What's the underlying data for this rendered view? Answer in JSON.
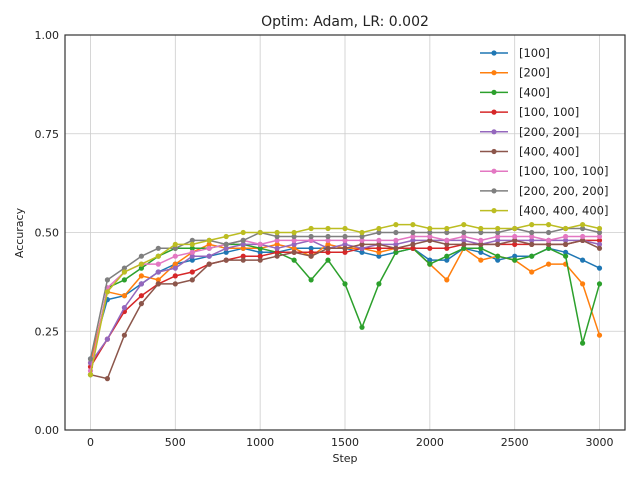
{
  "chart_data": {
    "type": "line",
    "title": "Optim: Adam, LR: 0.002",
    "xlabel": "Step",
    "ylabel": "Accuracy",
    "xlim": [
      -150,
      3150
    ],
    "ylim": [
      0.0,
      1.0
    ],
    "xticks": [
      0,
      500,
      1000,
      1500,
      2000,
      2500,
      3000
    ],
    "xtick_labels": [
      "0",
      "500",
      "1000",
      "1500",
      "2000",
      "2500",
      "3000"
    ],
    "yticks": [
      0.0,
      0.25,
      0.5,
      0.75,
      1.0
    ],
    "ytick_labels": [
      "0.00",
      "0.25",
      "0.50",
      "0.75",
      "1.00"
    ],
    "grid": true,
    "legend_position": "top-right",
    "x": [
      0,
      100,
      200,
      300,
      400,
      500,
      600,
      700,
      800,
      900,
      1000,
      1100,
      1200,
      1300,
      1400,
      1500,
      1600,
      1700,
      1800,
      1900,
      2000,
      2100,
      2200,
      2300,
      2400,
      2500,
      2600,
      2700,
      2800,
      2900,
      3000
    ],
    "series": [
      {
        "name": "[100]",
        "color": "#1f77b4",
        "values": [
          0.18,
          0.33,
          0.34,
          0.37,
          0.4,
          0.42,
          0.43,
          0.44,
          0.45,
          0.46,
          0.45,
          0.45,
          0.46,
          0.46,
          0.46,
          0.46,
          0.45,
          0.44,
          0.45,
          0.46,
          0.43,
          0.43,
          0.46,
          0.45,
          0.43,
          0.44,
          0.44,
          0.46,
          0.45,
          0.43,
          0.41
        ]
      },
      {
        "name": "[200]",
        "color": "#ff7f0e",
        "values": [
          0.17,
          0.35,
          0.34,
          0.39,
          0.38,
          0.42,
          0.45,
          0.47,
          0.46,
          0.46,
          0.46,
          0.47,
          0.46,
          0.44,
          0.47,
          0.46,
          0.46,
          0.45,
          0.46,
          0.46,
          0.42,
          0.38,
          0.46,
          0.43,
          0.44,
          0.43,
          0.4,
          0.42,
          0.42,
          0.37,
          0.24
        ]
      },
      {
        "name": "[400]",
        "color": "#2ca02c",
        "values": [
          0.14,
          0.36,
          0.38,
          0.41,
          0.44,
          0.46,
          0.46,
          0.46,
          0.47,
          0.47,
          0.46,
          0.45,
          0.43,
          0.38,
          0.43,
          0.37,
          0.26,
          0.37,
          0.45,
          0.46,
          0.42,
          0.44,
          0.46,
          0.46,
          0.44,
          0.43,
          0.44,
          0.46,
          0.44,
          0.22,
          0.37
        ]
      },
      {
        "name": "[100, 100]",
        "color": "#d62728",
        "values": [
          0.16,
          0.23,
          0.3,
          0.34,
          0.37,
          0.39,
          0.4,
          0.42,
          0.43,
          0.44,
          0.44,
          0.45,
          0.45,
          0.45,
          0.45,
          0.45,
          0.46,
          0.46,
          0.46,
          0.46,
          0.46,
          0.46,
          0.47,
          0.47,
          0.47,
          0.47,
          0.47,
          0.47,
          0.47,
          0.48,
          0.48
        ]
      },
      {
        "name": "[200, 200]",
        "color": "#9467bd",
        "values": [
          0.17,
          0.23,
          0.31,
          0.37,
          0.4,
          0.41,
          0.44,
          0.44,
          0.46,
          0.47,
          0.47,
          0.46,
          0.47,
          0.48,
          0.46,
          0.47,
          0.46,
          0.47,
          0.47,
          0.48,
          0.48,
          0.48,
          0.48,
          0.47,
          0.48,
          0.48,
          0.48,
          0.48,
          0.48,
          0.48,
          0.47
        ]
      },
      {
        "name": "[400, 400]",
        "color": "#8c564b",
        "values": [
          0.14,
          0.13,
          0.24,
          0.32,
          0.37,
          0.37,
          0.38,
          0.42,
          0.43,
          0.43,
          0.43,
          0.44,
          0.45,
          0.44,
          0.46,
          0.46,
          0.47,
          0.47,
          0.46,
          0.47,
          0.48,
          0.47,
          0.47,
          0.47,
          0.47,
          0.48,
          0.47,
          0.47,
          0.47,
          0.48,
          0.46
        ]
      },
      {
        "name": "[100, 100, 100]",
        "color": "#e377c2",
        "values": [
          0.15,
          0.36,
          0.4,
          0.42,
          0.42,
          0.44,
          0.45,
          0.46,
          0.47,
          0.48,
          0.47,
          0.48,
          0.48,
          0.48,
          0.48,
          0.48,
          0.48,
          0.48,
          0.48,
          0.49,
          0.49,
          0.48,
          0.49,
          0.48,
          0.49,
          0.49,
          0.49,
          0.48,
          0.49,
          0.49,
          0.49
        ]
      },
      {
        "name": "[200, 200, 200]",
        "color": "#7f7f7f",
        "values": [
          0.18,
          0.38,
          0.41,
          0.44,
          0.46,
          0.46,
          0.48,
          0.48,
          0.47,
          0.48,
          0.5,
          0.49,
          0.49,
          0.49,
          0.49,
          0.49,
          0.49,
          0.5,
          0.5,
          0.5,
          0.5,
          0.5,
          0.5,
          0.5,
          0.5,
          0.51,
          0.5,
          0.5,
          0.51,
          0.51,
          0.5
        ]
      },
      {
        "name": "[400, 400, 400]",
        "color": "#bcbd22",
        "values": [
          0.14,
          0.35,
          0.4,
          0.42,
          0.44,
          0.47,
          0.47,
          0.48,
          0.49,
          0.5,
          0.5,
          0.5,
          0.5,
          0.51,
          0.51,
          0.51,
          0.5,
          0.51,
          0.52,
          0.52,
          0.51,
          0.51,
          0.52,
          0.51,
          0.51,
          0.51,
          0.52,
          0.52,
          0.51,
          0.52,
          0.51
        ]
      }
    ]
  }
}
